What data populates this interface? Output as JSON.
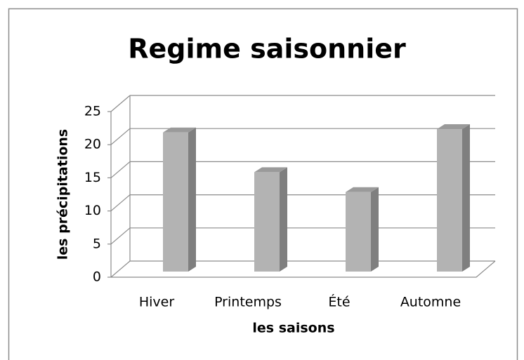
{
  "chart_data": {
    "type": "bar3d",
    "title": "Regime saisonnier",
    "x_label": "les saisons",
    "y_label": "les précipitations",
    "categories": [
      "Hiver",
      "Printemps",
      "Été",
      "Automne"
    ],
    "values": [
      21,
      15,
      12,
      21.5
    ],
    "color": "#b3b3b3",
    "side_color": "#7f7f7f",
    "top_color": "#9a9a9a",
    "ylim": [
      0,
      25
    ],
    "yticks": [
      0,
      5,
      10,
      15,
      20,
      25
    ],
    "grid": true
  }
}
